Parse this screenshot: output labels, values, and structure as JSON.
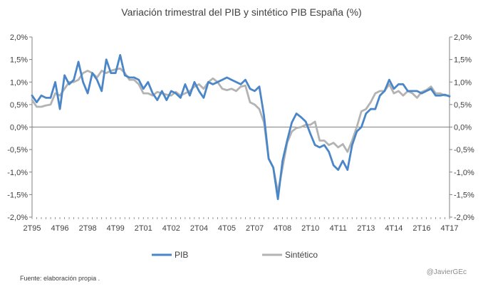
{
  "chart_data": {
    "type": "line",
    "title": "Variación trimestral del PIB y sintético PIB España (%)",
    "xlabel": "",
    "ylabel": "",
    "ylim": [
      -2.0,
      2.0
    ],
    "y_ticks": [
      "2,0%",
      "1,5%",
      "1,0%",
      "0,5%",
      "0,0%",
      "-0,5%",
      "-1,0%",
      "-1,5%",
      "-2,0%"
    ],
    "y_tick_values": [
      2.0,
      1.5,
      1.0,
      0.5,
      0.0,
      -0.5,
      -1.0,
      -1.5,
      -2.0
    ],
    "x_tick_labels": [
      "2T95",
      "4T96",
      "2T98",
      "4T99",
      "2T01",
      "4T02",
      "2T04",
      "4T05",
      "2T07",
      "4T08",
      "2T10",
      "4T11",
      "2T13",
      "4T14",
      "2T16",
      "4T17"
    ],
    "x_tick_index": [
      0,
      6,
      12,
      18,
      24,
      30,
      36,
      42,
      48,
      54,
      60,
      66,
      72,
      78,
      84,
      90
    ],
    "grid": false,
    "legend_position": "bottom",
    "series": [
      {
        "name": "PIB",
        "color": "#4a86c8",
        "values": [
          0.7,
          0.55,
          0.7,
          0.65,
          0.65,
          1.0,
          0.4,
          1.15,
          0.95,
          1.05,
          1.45,
          1.0,
          0.75,
          1.2,
          1.05,
          0.8,
          1.5,
          1.2,
          1.2,
          1.6,
          1.15,
          1.1,
          1.1,
          1.05,
          0.85,
          1.0,
          0.75,
          0.6,
          0.8,
          0.6,
          0.8,
          0.75,
          0.65,
          0.95,
          0.7,
          1.0,
          0.8,
          0.65,
          1.0,
          0.95,
          1.0,
          1.05,
          1.1,
          1.05,
          1.0,
          0.95,
          1.05,
          0.85,
          0.8,
          0.9,
          0.25,
          -0.7,
          -0.9,
          -1.6,
          -0.75,
          -0.3,
          0.1,
          0.3,
          0.22,
          0.12,
          -0.15,
          -0.4,
          -0.45,
          -0.4,
          -0.55,
          -0.85,
          -0.95,
          -0.75,
          -0.95,
          -0.4,
          -0.1,
          0.0,
          0.3,
          0.4,
          0.4,
          0.7,
          0.8,
          1.05,
          0.85,
          0.95,
          0.95,
          0.8,
          0.8,
          0.8,
          0.75,
          0.8,
          0.85,
          0.7,
          0.7,
          0.72,
          0.68
        ]
      },
      {
        "name": "Sintético",
        "color": "#b3b3b3",
        "values": [
          0.6,
          0.45,
          0.45,
          0.48,
          0.5,
          0.75,
          0.7,
          0.85,
          1.0,
          1.0,
          1.05,
          1.2,
          1.25,
          1.2,
          1.1,
          1.25,
          1.2,
          1.25,
          1.28,
          1.3,
          1.2,
          1.05,
          1.05,
          0.95,
          0.75,
          0.75,
          0.7,
          0.78,
          0.75,
          0.72,
          0.7,
          0.78,
          0.7,
          0.75,
          0.8,
          0.9,
          0.95,
          0.85,
          1.0,
          1.08,
          1.0,
          0.85,
          0.82,
          0.85,
          0.8,
          0.9,
          0.92,
          0.55,
          0.5,
          0.4,
          0.1,
          -0.7,
          -0.9,
          -1.45,
          -0.9,
          -0.35,
          -0.1,
          -0.02,
          0.0,
          0.05,
          0.05,
          0.12,
          -0.3,
          -0.3,
          -0.4,
          -0.35,
          -0.45,
          -0.38,
          -0.55,
          -0.3,
          0.0,
          0.35,
          0.4,
          0.55,
          0.75,
          0.8,
          0.8,
          0.95,
          0.75,
          0.8,
          0.7,
          0.8,
          0.75,
          0.65,
          0.78,
          0.82,
          0.9,
          0.75,
          0.75,
          0.7,
          0.7
        ]
      }
    ]
  },
  "footnote": "Fuente: elaboración propia .",
  "watermark": "@JavierGEc"
}
